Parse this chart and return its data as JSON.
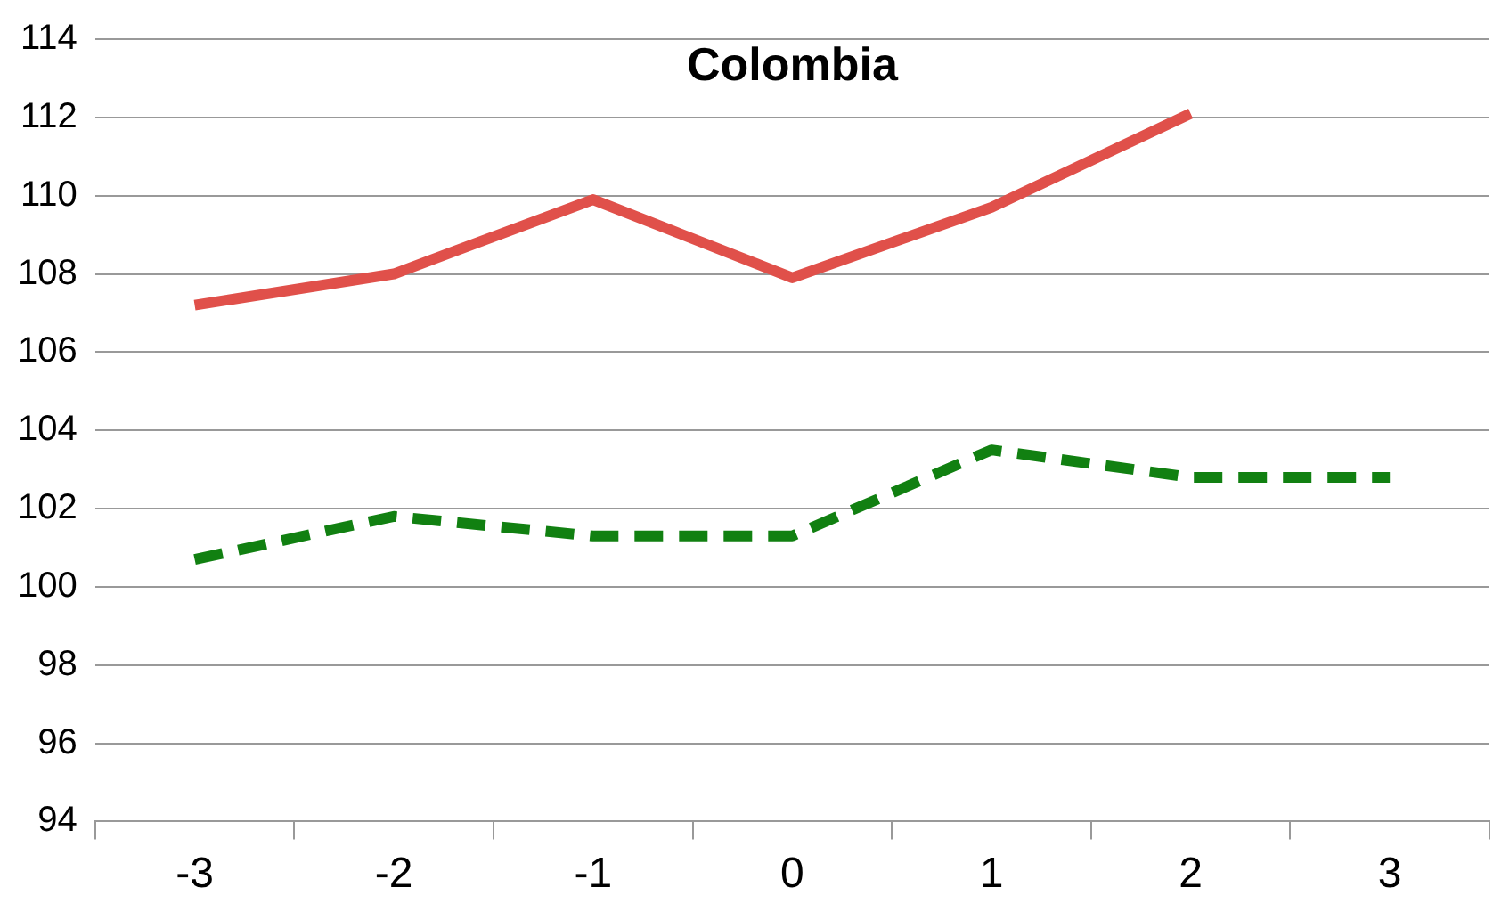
{
  "chart_data": {
    "type": "line",
    "title": "Colombia",
    "categories": [
      "-3",
      "-2",
      "-1",
      "0",
      "1",
      "2",
      "3"
    ],
    "series": [
      {
        "color": "#e0504a",
        "line_style": "solid",
        "values": [
          107.2,
          108.0,
          109.9,
          107.9,
          109.7,
          112.1,
          null
        ]
      },
      {
        "color": "#118011",
        "line_style": "dashed",
        "values": [
          100.7,
          101.8,
          101.3,
          101.3,
          103.5,
          102.8,
          102.8
        ]
      }
    ],
    "ylim": [
      94,
      114
    ],
    "yticks": [
      94,
      96,
      98,
      100,
      102,
      104,
      106,
      108,
      110,
      112,
      114
    ],
    "grid": "y",
    "legend": false,
    "marker": "none"
  }
}
